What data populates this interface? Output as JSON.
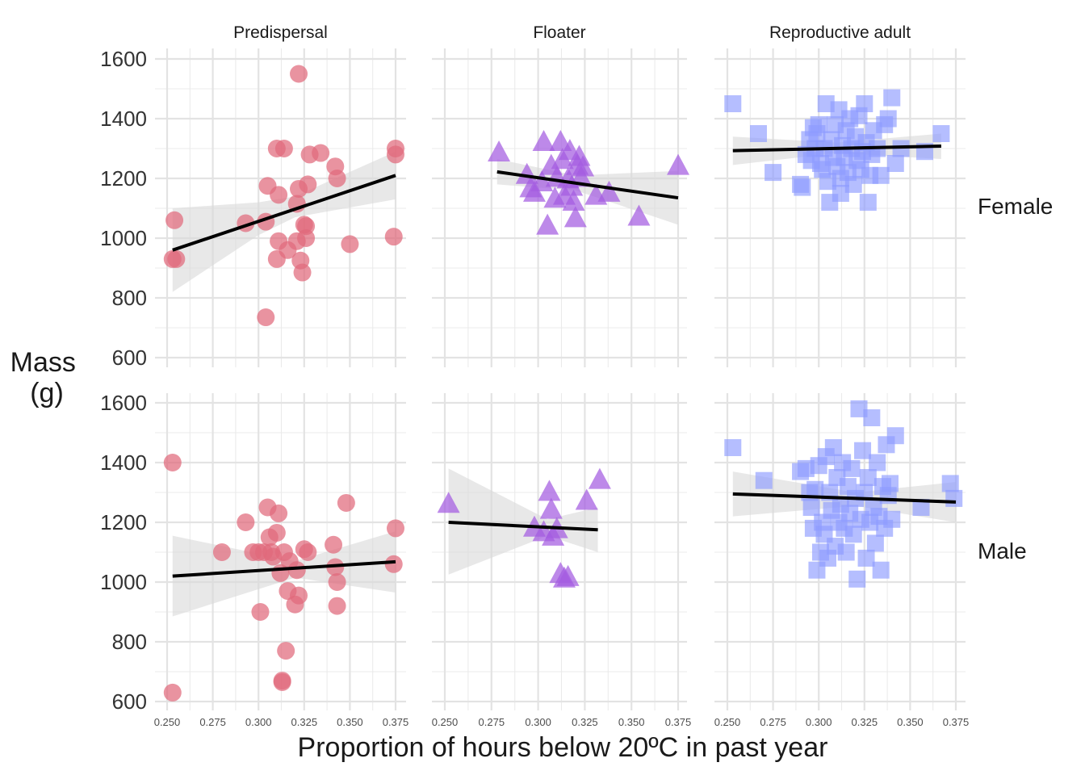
{
  "chart_data": {
    "type": "scatter",
    "title": "",
    "xlabel": "Proportion of hours below 20ºC in past year",
    "ylabel": "Mass\n(g)",
    "ylabel_lines": [
      "Mass",
      "(g)"
    ],
    "columns": [
      "Predispersal",
      "Floater",
      "Reproductive adult"
    ],
    "rows": [
      "Female",
      "Male"
    ],
    "xlim": [
      0.25,
      0.375
    ],
    "ylim": [
      600,
      1600
    ],
    "x_ticks": [
      "0.250",
      "0.275",
      "0.300",
      "0.325",
      "0.350",
      "0.375"
    ],
    "y_ticks": [
      "600",
      "800",
      "1000",
      "1200",
      "1400",
      "1600"
    ],
    "grid": true,
    "legend": "none",
    "colors": {
      "Predispersal": "#E06A7B",
      "Floater": "#A35BE0",
      "Reproductive adult": "#8E9BFF",
      "trend": "#000000",
      "ci_band": "#D9D9D9"
    },
    "shapes": {
      "Predispersal": "circle",
      "Floater": "triangle",
      "Reproductive adult": "square"
    },
    "panels": [
      {
        "row": "Female",
        "column": "Predispersal",
        "trend": {
          "x": [
            0.253,
            0.375
          ],
          "y": [
            960,
            1210
          ]
        },
        "ci": {
          "x": [
            0.253,
            0.3,
            0.32,
            0.375
          ],
          "lower": [
            820,
            1010,
            1070,
            1130
          ],
          "upper": [
            1100,
            1120,
            1140,
            1290
          ]
        },
        "points": [
          [
            0.254,
            1060
          ],
          [
            0.253,
            930
          ],
          [
            0.255,
            930
          ],
          [
            0.293,
            1050
          ],
          [
            0.304,
            1055
          ],
          [
            0.305,
            1175
          ],
          [
            0.311,
            1145
          ],
          [
            0.31,
            1300
          ],
          [
            0.314,
            1300
          ],
          [
            0.311,
            990
          ],
          [
            0.31,
            930
          ],
          [
            0.316,
            960
          ],
          [
            0.321,
            990
          ],
          [
            0.322,
            1165
          ],
          [
            0.321,
            1115
          ],
          [
            0.322,
            1550
          ],
          [
            0.323,
            925
          ],
          [
            0.324,
            885
          ],
          [
            0.325,
            1045
          ],
          [
            0.326,
            1040
          ],
          [
            0.326,
            1000
          ],
          [
            0.327,
            1180
          ],
          [
            0.328,
            1280
          ],
          [
            0.334,
            1285
          ],
          [
            0.342,
            1240
          ],
          [
            0.343,
            1200
          ],
          [
            0.35,
            980
          ],
          [
            0.374,
            1005
          ],
          [
            0.375,
            1300
          ],
          [
            0.375,
            1280
          ],
          [
            0.304,
            735
          ]
        ]
      },
      {
        "row": "Female",
        "column": "Floater",
        "trend": {
          "x": [
            0.278,
            0.375
          ],
          "y": [
            1222,
            1135
          ]
        },
        "ci": {
          "x": [
            0.278,
            0.32,
            0.375
          ],
          "lower": [
            1180,
            1160,
            1045
          ],
          "upper": [
            1265,
            1210,
            1225
          ]
        },
        "points": [
          [
            0.279,
            1285
          ],
          [
            0.294,
            1210
          ],
          [
            0.296,
            1165
          ],
          [
            0.298,
            1150
          ],
          [
            0.302,
            1185
          ],
          [
            0.303,
            1320
          ],
          [
            0.305,
            1040
          ],
          [
            0.307,
            1240
          ],
          [
            0.309,
            1130
          ],
          [
            0.31,
            1200
          ],
          [
            0.312,
            1320
          ],
          [
            0.313,
            1260
          ],
          [
            0.314,
            1140
          ],
          [
            0.316,
            1195
          ],
          [
            0.317,
            1290
          ],
          [
            0.318,
            1170
          ],
          [
            0.319,
            1120
          ],
          [
            0.32,
            1065
          ],
          [
            0.321,
            1240
          ],
          [
            0.322,
            1270
          ],
          [
            0.323,
            1200
          ],
          [
            0.324,
            1235
          ],
          [
            0.331,
            1140
          ],
          [
            0.338,
            1150
          ],
          [
            0.354,
            1070
          ],
          [
            0.375,
            1240
          ]
        ]
      },
      {
        "row": "Female",
        "column": "Reproductive adult",
        "trend": {
          "x": [
            0.253,
            0.367
          ],
          "y": [
            1293,
            1308
          ]
        },
        "ci": {
          "x": [
            0.253,
            0.31,
            0.367
          ],
          "lower": [
            1245,
            1285,
            1265
          ],
          "upper": [
            1340,
            1320,
            1350
          ]
        },
        "points": [
          [
            0.253,
            1450
          ],
          [
            0.267,
            1350
          ],
          [
            0.275,
            1220
          ],
          [
            0.29,
            1180
          ],
          [
            0.291,
            1170
          ],
          [
            0.293,
            1280
          ],
          [
            0.295,
            1330
          ],
          [
            0.297,
            1370
          ],
          [
            0.298,
            1300
          ],
          [
            0.299,
            1350
          ],
          [
            0.3,
            1380
          ],
          [
            0.301,
            1250
          ],
          [
            0.302,
            1230
          ],
          [
            0.303,
            1300
          ],
          [
            0.304,
            1450
          ],
          [
            0.305,
            1190
          ],
          [
            0.306,
            1120
          ],
          [
            0.307,
            1330
          ],
          [
            0.308,
            1270
          ],
          [
            0.309,
            1380
          ],
          [
            0.31,
            1240
          ],
          [
            0.311,
            1430
          ],
          [
            0.312,
            1200
          ],
          [
            0.313,
            1310
          ],
          [
            0.314,
            1270
          ],
          [
            0.315,
            1360
          ],
          [
            0.316,
            1220
          ],
          [
            0.317,
            1400
          ],
          [
            0.318,
            1300
          ],
          [
            0.319,
            1180
          ],
          [
            0.32,
            1340
          ],
          [
            0.321,
            1260
          ],
          [
            0.322,
            1410
          ],
          [
            0.323,
            1230
          ],
          [
            0.324,
            1290
          ],
          [
            0.325,
            1450
          ],
          [
            0.326,
            1320
          ],
          [
            0.327,
            1120
          ],
          [
            0.328,
            1210
          ],
          [
            0.329,
            1280
          ],
          [
            0.33,
            1360
          ],
          [
            0.332,
            1300
          ],
          [
            0.334,
            1210
          ],
          [
            0.336,
            1380
          ],
          [
            0.338,
            1400
          ],
          [
            0.34,
            1470
          ],
          [
            0.342,
            1250
          ],
          [
            0.345,
            1300
          ],
          [
            0.358,
            1290
          ],
          [
            0.367,
            1350
          ],
          [
            0.296,
            1260
          ],
          [
            0.312,
            1150
          ]
        ]
      },
      {
        "row": "Male",
        "column": "Predispersal",
        "trend": {
          "x": [
            0.253,
            0.375
          ],
          "y": [
            1020,
            1068
          ]
        },
        "ci": {
          "x": [
            0.253,
            0.32,
            0.375
          ],
          "lower": [
            885,
            1015,
            965
          ],
          "upper": [
            1155,
            1070,
            1170
          ]
        },
        "points": [
          [
            0.253,
            1400
          ],
          [
            0.253,
            630
          ],
          [
            0.28,
            1100
          ],
          [
            0.293,
            1200
          ],
          [
            0.297,
            1100
          ],
          [
            0.3,
            1100
          ],
          [
            0.301,
            900
          ],
          [
            0.303,
            1100
          ],
          [
            0.305,
            1250
          ],
          [
            0.306,
            1150
          ],
          [
            0.307,
            1100
          ],
          [
            0.308,
            1085
          ],
          [
            0.31,
            1165
          ],
          [
            0.311,
            1230
          ],
          [
            0.312,
            1030
          ],
          [
            0.313,
            670
          ],
          [
            0.313,
            665
          ],
          [
            0.314,
            1100
          ],
          [
            0.315,
            770
          ],
          [
            0.316,
            970
          ],
          [
            0.317,
            1070
          ],
          [
            0.32,
            925
          ],
          [
            0.321,
            1040
          ],
          [
            0.322,
            955
          ],
          [
            0.325,
            1110
          ],
          [
            0.327,
            1100
          ],
          [
            0.341,
            1125
          ],
          [
            0.342,
            1050
          ],
          [
            0.343,
            1000
          ],
          [
            0.343,
            920
          ],
          [
            0.348,
            1265
          ],
          [
            0.374,
            1060
          ],
          [
            0.375,
            1180
          ]
        ]
      },
      {
        "row": "Male",
        "column": "Floater",
        "trend": {
          "x": [
            0.252,
            0.332
          ],
          "y": [
            1200,
            1175
          ]
        },
        "ci": {
          "x": [
            0.252,
            0.305,
            0.332
          ],
          "lower": [
            1025,
            1155,
            1100
          ],
          "upper": [
            1380,
            1210,
            1250
          ]
        },
        "points": [
          [
            0.252,
            1260
          ],
          [
            0.298,
            1180
          ],
          [
            0.303,
            1165
          ],
          [
            0.306,
            1300
          ],
          [
            0.307,
            1240
          ],
          [
            0.308,
            1150
          ],
          [
            0.31,
            1175
          ],
          [
            0.312,
            1025
          ],
          [
            0.314,
            1010
          ],
          [
            0.316,
            1015
          ],
          [
            0.326,
            1270
          ],
          [
            0.333,
            1340
          ]
        ]
      },
      {
        "row": "Male",
        "column": "Reproductive adult",
        "trend": {
          "x": [
            0.253,
            0.375
          ],
          "y": [
            1295,
            1268
          ]
        },
        "ci": {
          "x": [
            0.253,
            0.32,
            0.375
          ],
          "lower": [
            1220,
            1255,
            1200
          ],
          "upper": [
            1370,
            1300,
            1335
          ]
        },
        "points": [
          [
            0.253,
            1450
          ],
          [
            0.27,
            1340
          ],
          [
            0.29,
            1370
          ],
          [
            0.293,
            1380
          ],
          [
            0.295,
            1300
          ],
          [
            0.296,
            1250
          ],
          [
            0.297,
            1180
          ],
          [
            0.298,
            1310
          ],
          [
            0.299,
            1040
          ],
          [
            0.3,
            1390
          ],
          [
            0.301,
            1100
          ],
          [
            0.302,
            1200
          ],
          [
            0.303,
            1160
          ],
          [
            0.304,
            1420
          ],
          [
            0.305,
            1080
          ],
          [
            0.306,
            1300
          ],
          [
            0.307,
            1240
          ],
          [
            0.308,
            1450
          ],
          [
            0.309,
            1120
          ],
          [
            0.31,
            1350
          ],
          [
            0.311,
            1200
          ],
          [
            0.312,
            1260
          ],
          [
            0.313,
            1400
          ],
          [
            0.314,
            1180
          ],
          [
            0.315,
            1100
          ],
          [
            0.316,
            1320
          ],
          [
            0.317,
            1230
          ],
          [
            0.318,
            1380
          ],
          [
            0.319,
            1160
          ],
          [
            0.32,
            1280
          ],
          [
            0.321,
            1010
          ],
          [
            0.322,
            1580
          ],
          [
            0.323,
            1210
          ],
          [
            0.324,
            1440
          ],
          [
            0.325,
            1300
          ],
          [
            0.326,
            1080
          ],
          [
            0.327,
            1350
          ],
          [
            0.328,
            1200
          ],
          [
            0.329,
            1550
          ],
          [
            0.33,
            1250
          ],
          [
            0.331,
            1130
          ],
          [
            0.332,
            1400
          ],
          [
            0.333,
            1220
          ],
          [
            0.334,
            1040
          ],
          [
            0.335,
            1320
          ],
          [
            0.336,
            1180
          ],
          [
            0.337,
            1460
          ],
          [
            0.338,
            1290
          ],
          [
            0.339,
            1330
          ],
          [
            0.34,
            1210
          ],
          [
            0.342,
            1490
          ],
          [
            0.356,
            1250
          ],
          [
            0.372,
            1330
          ],
          [
            0.374,
            1280
          ]
        ]
      }
    ]
  }
}
